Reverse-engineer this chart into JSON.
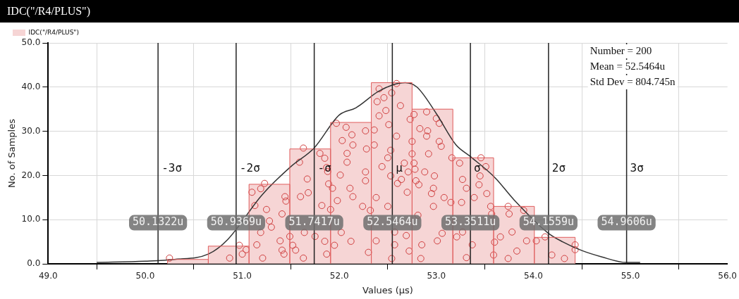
{
  "chart_data": {
    "type": "histogram",
    "title": "IDC(\"/R4/PLUS\")",
    "xlabel": "Values (μs)",
    "ylabel": "No. of Samples",
    "bins": [
      50.23,
      50.65,
      51.07,
      51.49,
      51.91,
      52.33,
      52.75,
      53.17,
      53.59,
      54.01,
      54.43
    ],
    "series": [
      {
        "name": "IDC(\"/R4/PLUS\")",
        "color": "#f6d5d5",
        "values": [
          1,
          4,
          18,
          26,
          32,
          41,
          35,
          24,
          13,
          6
        ]
      },
      {
        "type": "line",
        "color": "#333333",
        "marker": "none",
        "x": [
          49.5,
          50.0,
          50.3,
          50.65,
          50.85,
          50.94,
          51.0,
          51.2,
          51.5,
          51.74,
          52.0,
          52.17,
          52.4,
          52.55,
          52.68,
          52.8,
          53.0,
          53.2,
          53.35,
          53.6,
          53.8,
          54.0,
          54.15,
          54.3,
          54.5,
          54.7,
          54.96,
          55.1
        ],
        "values": [
          0.3,
          0.6,
          1.0,
          2.2,
          5.5,
          null,
          null,
          15.5,
          22,
          26.2,
          33.7,
          35.3,
          39,
          40.5,
          41,
          40,
          34,
          27,
          24.3,
          19.6,
          14.5,
          null,
          7,
          5,
          3,
          1.6,
          0.3,
          0.3
        ]
      },
      {
        "type": "scatter",
        "color": "#d04040",
        "marker": "circle",
        "x": [
          50.25,
          50.87,
          50.97,
          51.0,
          51.04,
          51.1,
          51.13,
          51.15,
          51.19,
          51.19,
          51.21,
          51.23,
          51.25,
          51.28,
          51.3,
          51.39,
          51.41,
          51.41,
          51.43,
          51.44,
          51.45,
          51.49,
          51.52,
          51.55,
          51.59,
          51.6,
          51.63,
          51.63,
          51.64,
          51.65,
          51.67,
          51.68,
          51.75,
          51.8,
          51.82,
          51.85,
          51.85,
          51.87,
          51.88,
          51.87,
          51.89,
          51.91,
          51.93,
          51.95,
          51.97,
          51.98,
          52.01,
          52.02,
          52.03,
          52.07,
          52.08,
          52.08,
          52.11,
          52.12,
          52.13,
          52.14,
          52.14,
          52.27,
          52.28,
          52.27,
          52.27,
          52.24,
          52.32,
          52.36,
          52.36,
          52.38,
          52.38,
          52.3,
          52.41,
          52.39,
          52.41,
          52.44,
          52.46,
          52.48,
          52.5,
          52.5,
          52.51,
          52.53,
          52.53,
          52.54,
          52.54,
          52.57,
          52.57,
          52.59,
          52.59,
          52.6,
          52.63,
          52.64,
          52.67,
          52.69,
          52.7,
          52.71,
          52.72,
          52.73,
          52.75,
          52.75,
          52.77,
          52.77,
          52.78,
          52.79,
          52.81,
          52.82,
          52.83,
          52.84,
          52.85,
          52.88,
          52.9,
          52.9,
          52.91,
          52.92,
          52.95,
          52.97,
          52.97,
          52.98,
          53.0,
          53.01,
          53.03,
          53.03,
          53.05,
          53.06,
          53.08,
          53.15,
          53.16,
          53.21,
          53.24,
          53.26,
          53.27,
          53.27,
          53.31,
          53.31,
          53.37,
          53.39,
          53.44,
          53.45,
          53.46,
          53.51,
          53.52,
          53.56,
          53.57,
          53.59,
          53.6,
          53.66,
          53.74,
          53.74,
          53.75,
          53.78,
          53.83,
          53.9,
          53.93,
          54.03,
          54.12,
          54.19,
          54.32,
          54.43,
          54.43
        ],
        "values": [
          1.3,
          1.3,
          4.2,
          2.2,
          3.2,
          16.2,
          13.2,
          4.3,
          17,
          7.1,
          1.3,
          18.2,
          12.3,
          9.7,
          8.3,
          5.2,
          3.1,
          11.3,
          2.2,
          15.2,
          14.2,
          6.2,
          4.2,
          3.1,
          23,
          15.2,
          26.2,
          1.3,
          7.1,
          null,
          19.2,
          16.1,
          6.2,
          25,
          13.2,
          23.9,
          5.1,
          21.8,
          20.9,
          2.2,
          18.1,
          12.3,
          17.1,
          4.2,
          31.8,
          14.3,
          20.1,
          7.1,
          27.9,
          30.9,
          25,
          23,
          17.1,
          5.1,
          29.2,
          26.9,
          15.2,
          30.1,
          26,
          20.8,
          18.8,
          13,
          12.1,
          30.3,
          26.9,
          15,
          5.2,
          2.6,
          39.6,
          36.7,
          33.5,
          22,
          37.6,
          34.7,
          24,
          13,
          31.5,
          25.7,
          19.9,
          38.7,
          1.2,
          4.3,
          7.2,
          28.9,
          40.8,
          18.2,
          35.8,
          19.1,
          22.8,
          6.4,
          16.2,
          20.8,
          2.9,
          32.7,
          27.7,
          24.9,
          22.8,
          33.8,
          21.4,
          18.8,
          11,
          17.9,
          30.6,
          1.2,
          4.3,
          20.8,
          34.4,
          28.9,
          30.1,
          24.9,
          15.9,
          17.1,
          13,
          19.9,
          32.9,
          5.2,
          27.7,
          31.8,
          26.6,
          6.9,
          15,
          13.9,
          24,
          6.1,
          22.8,
          13.9,
          19.1,
          7.2,
          17.1,
          1.4,
          4.3,
          15,
          17.9,
          19.9,
          24,
          22,
          15.9,
          13,
          11.3,
          2,
          4.9,
          6.1,
          1.2,
          13,
          11.3,
          7.2,
          2.9,
          12.1,
          5.2,
          5.2,
          6.1,
          2,
          1.2,
          4.3,
          3.2
        ]
      }
    ],
    "xlim": [
      49,
      56
    ],
    "xticks": [
      {
        "value": 49,
        "label": "49.0"
      },
      {
        "value": 50,
        "label": "50.0"
      },
      {
        "value": 51,
        "label": "51.0"
      },
      {
        "value": 52,
        "label": "52.0"
      },
      {
        "value": 53,
        "label": "53.0"
      },
      {
        "value": 54,
        "label": "54.0"
      },
      {
        "value": 55,
        "label": "55.0"
      },
      {
        "value": 56,
        "label": "56.0"
      }
    ],
    "ylim": [
      0,
      50
    ],
    "yticks": [
      {
        "value": 0,
        "label": "0.0"
      },
      {
        "value": 10,
        "label": "10.0"
      },
      {
        "value": 20,
        "label": "20.0"
      },
      {
        "value": 30,
        "label": "30.0"
      },
      {
        "value": 40,
        "label": "40.0"
      },
      {
        "value": 50,
        "label": "50.0"
      }
    ],
    "grid": true,
    "legend": "top left",
    "ref_lines": [
      {
        "axis": "x",
        "value": 50.1322,
        "label": "-3σ",
        "color": "#222222"
      },
      {
        "axis": "x",
        "value": 50.9369,
        "label": "-2σ",
        "color": "#222222"
      },
      {
        "axis": "x",
        "value": 51.7417,
        "label": "-σ",
        "color": "#222222"
      },
      {
        "axis": "x",
        "value": 52.5464,
        "label": "μ",
        "color": "#222222"
      },
      {
        "axis": "x",
        "value": 53.3511,
        "label": "σ",
        "color": "#222222"
      },
      {
        "axis": "x",
        "value": 54.1559,
        "label": "2σ",
        "color": "#222222"
      },
      {
        "axis": "x",
        "value": 54.9606,
        "label": "3σ",
        "color": "#222222"
      }
    ],
    "annotations": [
      "Number = 200",
      "Mean = 52.5464u",
      "Std Dev = 804.745n",
      {
        "text": "50.1322u",
        "x": 50.1322,
        "y": 9.3
      },
      {
        "text": "50.9369u",
        "x": 50.9369,
        "y": 9.3
      },
      {
        "text": "51.7417u",
        "x": 51.7417,
        "y": 9.3
      },
      {
        "text": "52.5464u",
        "x": 52.5464,
        "y": 9.3
      },
      {
        "text": "53.3511u",
        "x": 53.3511,
        "y": 9.3
      },
      {
        "text": "54.1559u",
        "x": 54.1559,
        "y": 9.3
      },
      {
        "text": "54.9606u",
        "x": 54.9606,
        "y": 9.3
      }
    ]
  }
}
